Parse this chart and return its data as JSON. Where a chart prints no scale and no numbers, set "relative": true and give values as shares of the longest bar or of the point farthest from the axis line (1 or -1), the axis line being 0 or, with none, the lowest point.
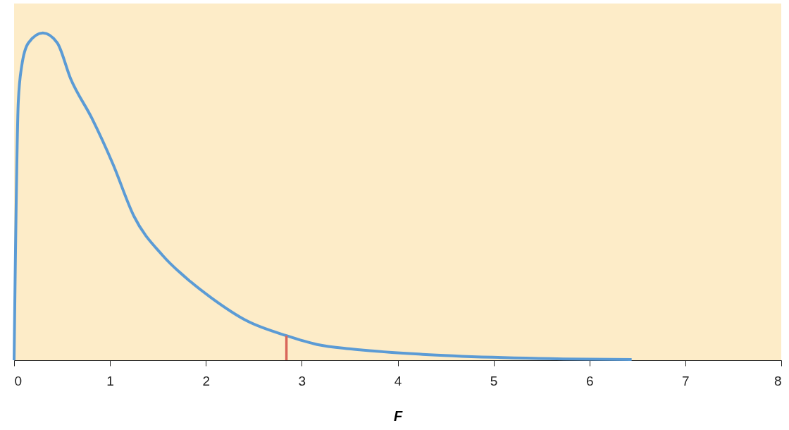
{
  "chart_data": {
    "type": "line",
    "xlabel": "F",
    "relative": true,
    "xlim": [
      0,
      8
    ],
    "xticks": [
      0,
      1,
      2,
      3,
      4,
      5,
      6,
      7,
      8
    ],
    "grid": false,
    "marker": "none",
    "line_style": "solid",
    "series": [
      {
        "color": "#5b9bd5",
        "x": [
          0,
          0.044,
          0.08,
          0.15,
          0.3,
          0.45,
          0.59,
          0.81,
          1.03,
          1.25,
          1.55,
          1.84,
          2.06,
          2.43,
          2.84,
          3.16,
          3.53,
          4.26,
          4.99,
          5.73,
          6.44
        ],
        "values": [
          0,
          0.79,
          0.9,
          0.97,
          1.0,
          0.97,
          0.86,
          0.74,
          0.6,
          0.44,
          0.32,
          0.24,
          0.19,
          0.12,
          0.075,
          0.048,
          0.034,
          0.018,
          0.009,
          0.004,
          0.002
        ]
      },
      {
        "type": "line",
        "color": "#d9665a",
        "x": [
          2.84,
          2.84
        ],
        "values": [
          0,
          0.075
        ]
      }
    ]
  }
}
